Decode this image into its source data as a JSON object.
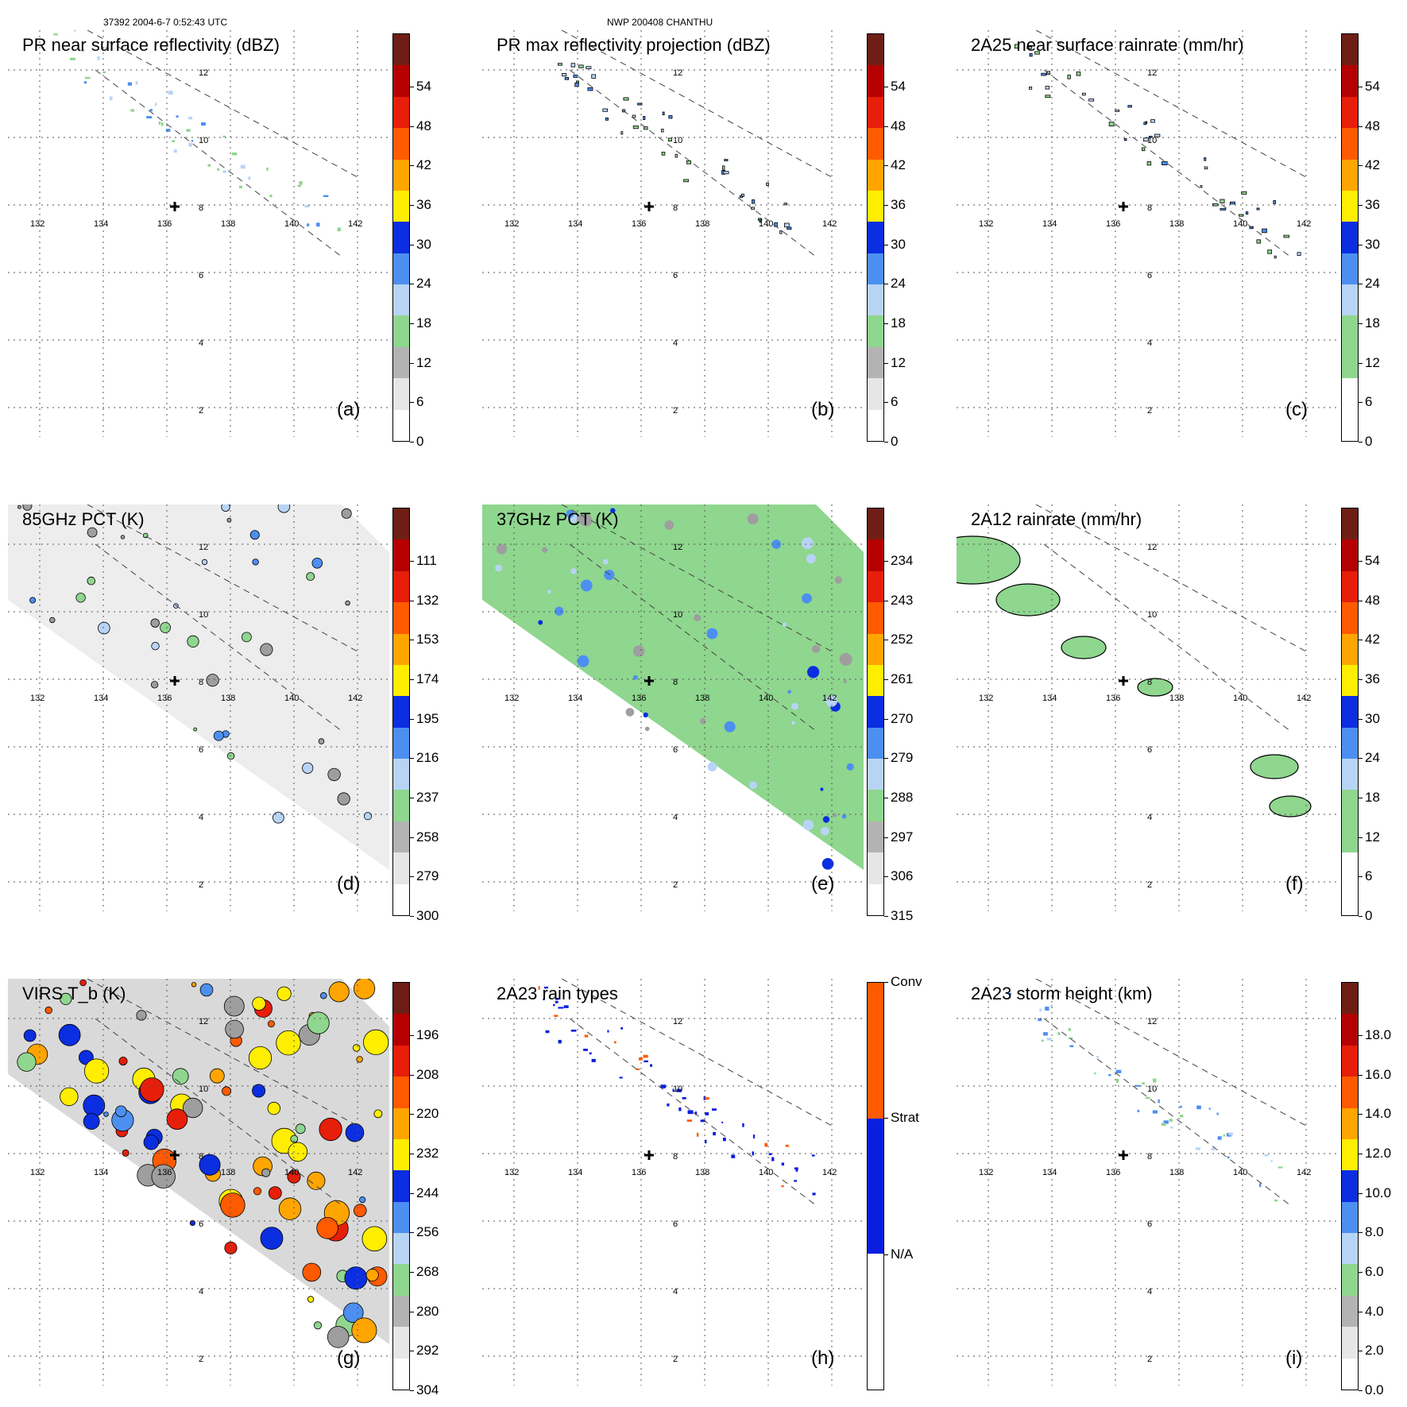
{
  "header": {
    "left": "37392 2004-6-7 0:52:43 UTC",
    "center": "NWP 200408 CHANTHU"
  },
  "colors": {
    "grid": "#555555",
    "swath": "#444444",
    "palette_precip": [
      "#ffffff",
      "#e6e6e6",
      "#b3b3b3",
      "#8fd68f",
      "#b8d4f5",
      "#4d8ff0",
      "#0a2ee0",
      "#ffee00",
      "#ffa500",
      "#ff5a00",
      "#e61e0a",
      "#b40000",
      "#6e1e14"
    ],
    "palette_tb": [
      "#ffffff",
      "#e6e6e6",
      "#b3b3b3",
      "#8fd68f",
      "#b8d4f5",
      "#4d8ff0",
      "#0a2ee0",
      "#ffee00",
      "#ffa500",
      "#ff5a00",
      "#e61e0a",
      "#b40000",
      "#6e1e14"
    ],
    "rain_types": [
      "#ffffff",
      "#0a1ee0",
      "#ff5a00"
    ]
  },
  "map_grid": {
    "lon_labels": [
      "132",
      "134",
      "136",
      "138",
      "140",
      "142"
    ],
    "lat_labels": [
      "12",
      "10",
      "8",
      "6",
      "4",
      "2"
    ],
    "storm_center_marker": "plus-icon"
  },
  "panels": [
    {
      "id": "a",
      "title": "PR near surface reflectivity (dBZ)",
      "label": "(a)",
      "colorbar": "precip",
      "ticks": [
        "54",
        "48",
        "42",
        "36",
        "30",
        "24",
        "18",
        "12",
        "6",
        "0"
      ],
      "field": "pr_swath"
    },
    {
      "id": "b",
      "title": "PR max reflectivity projection (dBZ)",
      "label": "(b)",
      "colorbar": "precip",
      "ticks": [
        "54",
        "48",
        "42",
        "36",
        "30",
        "24",
        "18",
        "12",
        "6",
        "0"
      ],
      "field": "pr_swath_contour"
    },
    {
      "id": "c",
      "title": "2A25 near surface rainrate (mm/hr)",
      "label": "(c)",
      "colorbar": "rain",
      "ticks": [
        "54",
        "48",
        "42",
        "36",
        "30",
        "24",
        "18",
        "12",
        "6",
        "0"
      ],
      "field": "pr_swath_contour"
    },
    {
      "id": "d",
      "title": "85GHz PCT (K)",
      "label": "(d)",
      "colorbar": "tb",
      "ticks": [
        "111",
        "132",
        "153",
        "174",
        "195",
        "216",
        "237",
        "258",
        "279",
        "300"
      ],
      "field": "tmi_gray"
    },
    {
      "id": "e",
      "title": "37GHz PCT (K)",
      "label": "(e)",
      "colorbar": "tb",
      "ticks": [
        "234",
        "243",
        "252",
        "261",
        "270",
        "279",
        "288",
        "297",
        "306",
        "315"
      ],
      "field": "tmi_green"
    },
    {
      "id": "f",
      "title": "2A12 rainrate (mm/hr)",
      "label": "(f)",
      "colorbar": "rain",
      "ticks": [
        "54",
        "48",
        "42",
        "36",
        "30",
        "24",
        "18",
        "12",
        "6",
        "0"
      ],
      "field": "tmi_rain"
    },
    {
      "id": "g",
      "title": "VIRS T_b (K)",
      "label": "(g)",
      "colorbar": "tb",
      "ticks": [
        "196",
        "208",
        "220",
        "232",
        "244",
        "256",
        "268",
        "280",
        "292",
        "304"
      ],
      "field": "virs"
    },
    {
      "id": "h",
      "title": "2A23 rain types",
      "label": "(h)",
      "colorbar": "types",
      "ticks": [
        "Conv",
        "Strat",
        "N/A"
      ],
      "field": "pr_types"
    },
    {
      "id": "i",
      "title": "2A23 storm height (km)",
      "label": "(i)",
      "colorbar": "height",
      "ticks": [
        "18.0",
        "16.0",
        "14.0",
        "12.0",
        "10.0",
        "8.0",
        "6.0",
        "4.0",
        "2.0",
        "0.0"
      ],
      "field": "pr_swath_light"
    }
  ]
}
